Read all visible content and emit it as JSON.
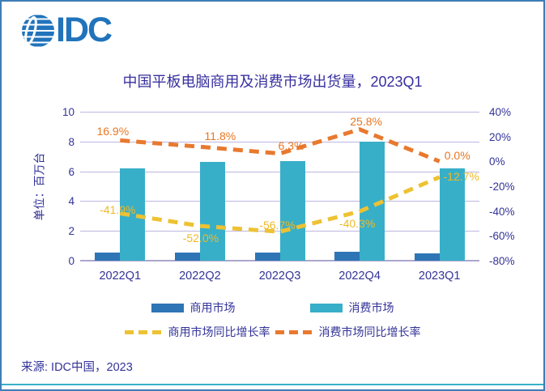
{
  "logo": {
    "text": "IDC"
  },
  "source": "来源: IDC中国，2023",
  "colors": {
    "logo_blue": "#2173BB",
    "title_text": "#37309E",
    "axis_text": "#333399",
    "gridline": "#BDB6E0",
    "baseline": "#ABA7CB",
    "frame_border": "#3E7DB7",
    "bottom_rule": "#38AFC8",
    "commercial_bar": "#2E75B6",
    "consumer_bar": "#38AFC8",
    "commercial_line": "#EDC233",
    "consumer_line": "#E8792F"
  },
  "chart_data": {
    "type": "combo-bar-line",
    "title": "中国平板电脑商用及消费市场出货量，2023Q1",
    "ylabel": "单位：百万台",
    "categories": [
      "2022Q1",
      "2022Q2",
      "2022Q3",
      "2022Q4",
      "2023Q1"
    ],
    "bar_series": [
      {
        "name": "商用市场",
        "color": "#2E75B6",
        "axis": "left",
        "values": [
          0.55,
          0.55,
          0.55,
          0.6,
          0.48
        ]
      },
      {
        "name": "消费市场",
        "color": "#38AFC8",
        "axis": "left",
        "values": [
          6.2,
          6.65,
          6.7,
          8.0,
          6.2
        ]
      }
    ],
    "line_series": [
      {
        "name": "商用市场同比增长率",
        "color": "#EDC233",
        "label_color": "#F0B929",
        "axis": "right",
        "values": [
          -41.9,
          -52.0,
          -56.7,
          -40.3,
          -12.7
        ],
        "labels": [
          "-41.9%",
          "-52.0%",
          "-56.7%",
          "-40.3%",
          "-12.7%"
        ]
      },
      {
        "name": "消费市场同比增长率",
        "color": "#E8792F",
        "label_color": "#E87722",
        "axis": "right",
        "values": [
          16.9,
          11.8,
          6.3,
          25.8,
          0.0
        ],
        "labels": [
          "16.9%",
          "11.8%",
          "6.3%",
          "25.8%",
          "0.0%"
        ]
      }
    ],
    "left_axis": {
      "title": "单位：百万台",
      "min": 0,
      "max": 10,
      "ticks": [
        "10",
        "8",
        "6",
        "4",
        "2",
        "0"
      ]
    },
    "right_axis": {
      "min": -80,
      "max": 40,
      "ticks": [
        "40%",
        "20%",
        "0%",
        "-20%",
        "-40%",
        "-60%",
        "-80%"
      ]
    },
    "grid": true,
    "legend_position": "bottom",
    "legend": [
      {
        "label": "商用市场",
        "swatch": "bar",
        "color": "#2E75B6"
      },
      {
        "label": "消费市场",
        "swatch": "bar",
        "color": "#38AFC8"
      },
      {
        "label": "商用市场同比增长率",
        "swatch": "dash",
        "color": "#EDC233"
      },
      {
        "label": "消费市场同比增长率",
        "swatch": "dash",
        "color": "#E8792F"
      }
    ]
  }
}
